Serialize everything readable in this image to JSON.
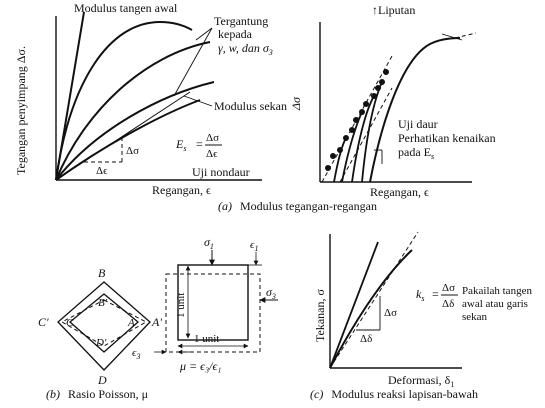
{
  "panel_a_left": {
    "initial_tangent_modulus": "Modulus tangen awal",
    "depends_on_1": "Tergantung",
    "depends_on_2": "kepada",
    "depends_on_3": "γ, w, dan σ",
    "depends_on_3_sub": "3",
    "secant_modulus": "Modulus sekan",
    "y_axis_label": "Tegangan penyimpang Δσ.",
    "x_axis_label": "Regangan, ϵ",
    "delta_sigma": "Δσ",
    "delta_eps": "Δϵ",
    "es_lhs": "E",
    "es_lhs_sub": "s",
    "es_eq": "=",
    "es_num": "Δσ",
    "es_den": "Δϵ",
    "test_label": "Uji nondaur"
  },
  "panel_a_right": {
    "envelope_label": "Liputan",
    "y_axis_label": "Δσ",
    "x_axis_label": "Regangan, ϵ",
    "cyclic_test": "Uji daur",
    "note_1": "Perhatikan kenaikan",
    "note_2": "pada E",
    "note_2_sub": "s"
  },
  "caption_a": {
    "letter": "(a)",
    "text": "Modulus tegangan-regangan"
  },
  "panel_b": {
    "label_B": "B",
    "label_B_prime": "B'",
    "label_C": "C",
    "label_C_prime": "C'",
    "label_A": "A",
    "label_A_prime": "A'",
    "label_D": "D",
    "label_D_prime": "D'",
    "sigma_1": "σ",
    "sigma_1_sub": "1",
    "eps_1": "ϵ",
    "eps_1_sub": "1",
    "sigma_3": "σ",
    "sigma_3_sub": "3",
    "eps_3": "ϵ",
    "eps_3_sub": "3",
    "unit_vertical": "1 unit",
    "unit_horizontal": "1 unit",
    "poisson_formula": "μ = ϵ₃/ϵ₁"
  },
  "caption_b": {
    "letter": "(b)",
    "text": "Rasio Poisson, μ"
  },
  "panel_c": {
    "y_axis_label": "Tekanan, σ",
    "x_axis_label": "Deformasi, δ",
    "x_axis_sub": "1",
    "delta_sigma": "Δσ",
    "delta_delta": "Δδ",
    "ks_lhs": "k",
    "ks_lhs_sub": "s",
    "ks_eq": "=",
    "ks_num": "Δσ",
    "ks_den": "Δδ",
    "note_1": "Pakailah tangen",
    "note_2": "awal atau garis",
    "note_3": "sekan"
  },
  "caption_c": {
    "letter": "(c)",
    "text": "Modulus reaksi lapisan-bawah"
  }
}
